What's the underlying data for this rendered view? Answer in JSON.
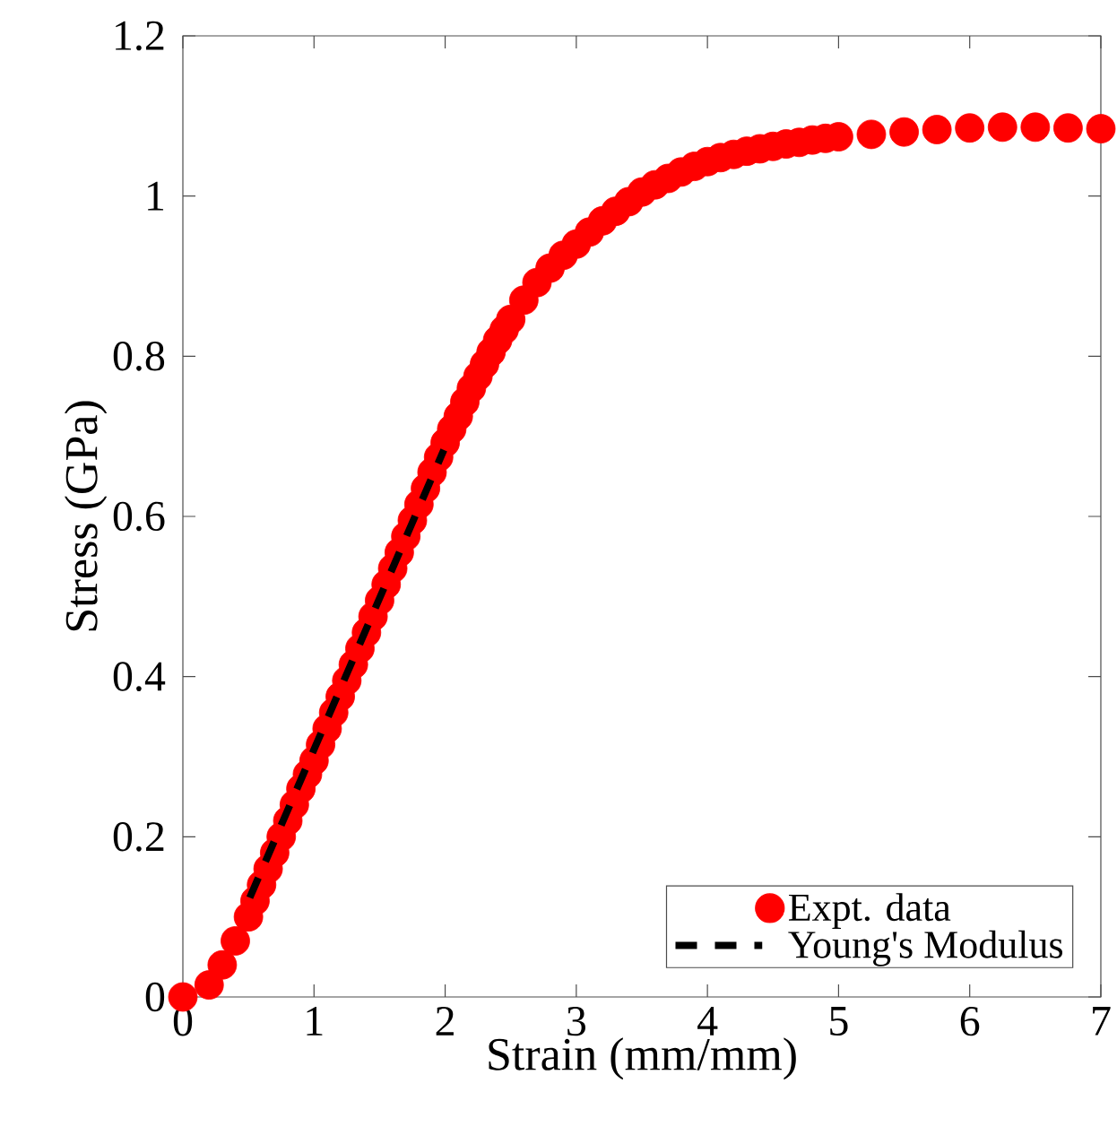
{
  "chart_data": {
    "type": "scatter",
    "xlabel": "Strain (mm/mm)",
    "ylabel": "Stress (GPa)",
    "xlim": [
      0,
      7
    ],
    "ylim": [
      0,
      1.2
    ],
    "xticks": [
      0,
      1,
      2,
      3,
      4,
      5,
      6,
      7
    ],
    "yticks": [
      0,
      0.2,
      0.4,
      0.6,
      0.8,
      1,
      1.2
    ],
    "legend": "bottom right",
    "grid": false,
    "series": [
      {
        "name": "Expt. data",
        "marker": "circle",
        "color": "#ff0000",
        "x": [
          0,
          0.2,
          0.3,
          0.4,
          0.5,
          0.55,
          0.6,
          0.65,
          0.7,
          0.75,
          0.8,
          0.85,
          0.9,
          0.95,
          1.0,
          1.05,
          1.1,
          1.15,
          1.2,
          1.25,
          1.3,
          1.35,
          1.4,
          1.45,
          1.5,
          1.55,
          1.6,
          1.65,
          1.7,
          1.75,
          1.8,
          1.85,
          1.9,
          1.95,
          2.0,
          2.05,
          2.1,
          2.15,
          2.2,
          2.25,
          2.3,
          2.35,
          2.4,
          2.45,
          2.5,
          2.6,
          2.7,
          2.8,
          2.9,
          3.0,
          3.1,
          3.2,
          3.3,
          3.4,
          3.5,
          3.6,
          3.7,
          3.8,
          3.9,
          4.0,
          4.1,
          4.2,
          4.3,
          4.4,
          4.5,
          4.6,
          4.7,
          4.8,
          4.9,
          5.0,
          5.25,
          5.5,
          5.75,
          6.0,
          6.25,
          6.5,
          6.75,
          7.0
        ],
        "values": [
          0,
          0.015,
          0.04,
          0.07,
          0.1,
          0.12,
          0.14,
          0.16,
          0.18,
          0.2,
          0.22,
          0.24,
          0.26,
          0.278,
          0.295,
          0.315,
          0.335,
          0.355,
          0.375,
          0.395,
          0.415,
          0.435,
          0.455,
          0.475,
          0.495,
          0.515,
          0.535,
          0.555,
          0.575,
          0.595,
          0.615,
          0.635,
          0.655,
          0.674,
          0.692,
          0.709,
          0.725,
          0.743,
          0.76,
          0.775,
          0.79,
          0.805,
          0.82,
          0.833,
          0.846,
          0.87,
          0.892,
          0.91,
          0.926,
          0.94,
          0.955,
          0.969,
          0.981,
          0.993,
          1.005,
          1.014,
          1.022,
          1.03,
          1.037,
          1.043,
          1.048,
          1.052,
          1.056,
          1.059,
          1.062,
          1.065,
          1.067,
          1.07,
          1.072,
          1.074,
          1.077,
          1.08,
          1.083,
          1.085,
          1.086,
          1.086,
          1.085,
          1.084
        ]
      },
      {
        "name": "Young's Modulus",
        "type": "line",
        "marker": "none",
        "line_style": "dashed",
        "color": "#000000",
        "x": [
          0.51,
          1.99
        ],
        "values": [
          0.124,
          0.683
        ]
      }
    ]
  }
}
